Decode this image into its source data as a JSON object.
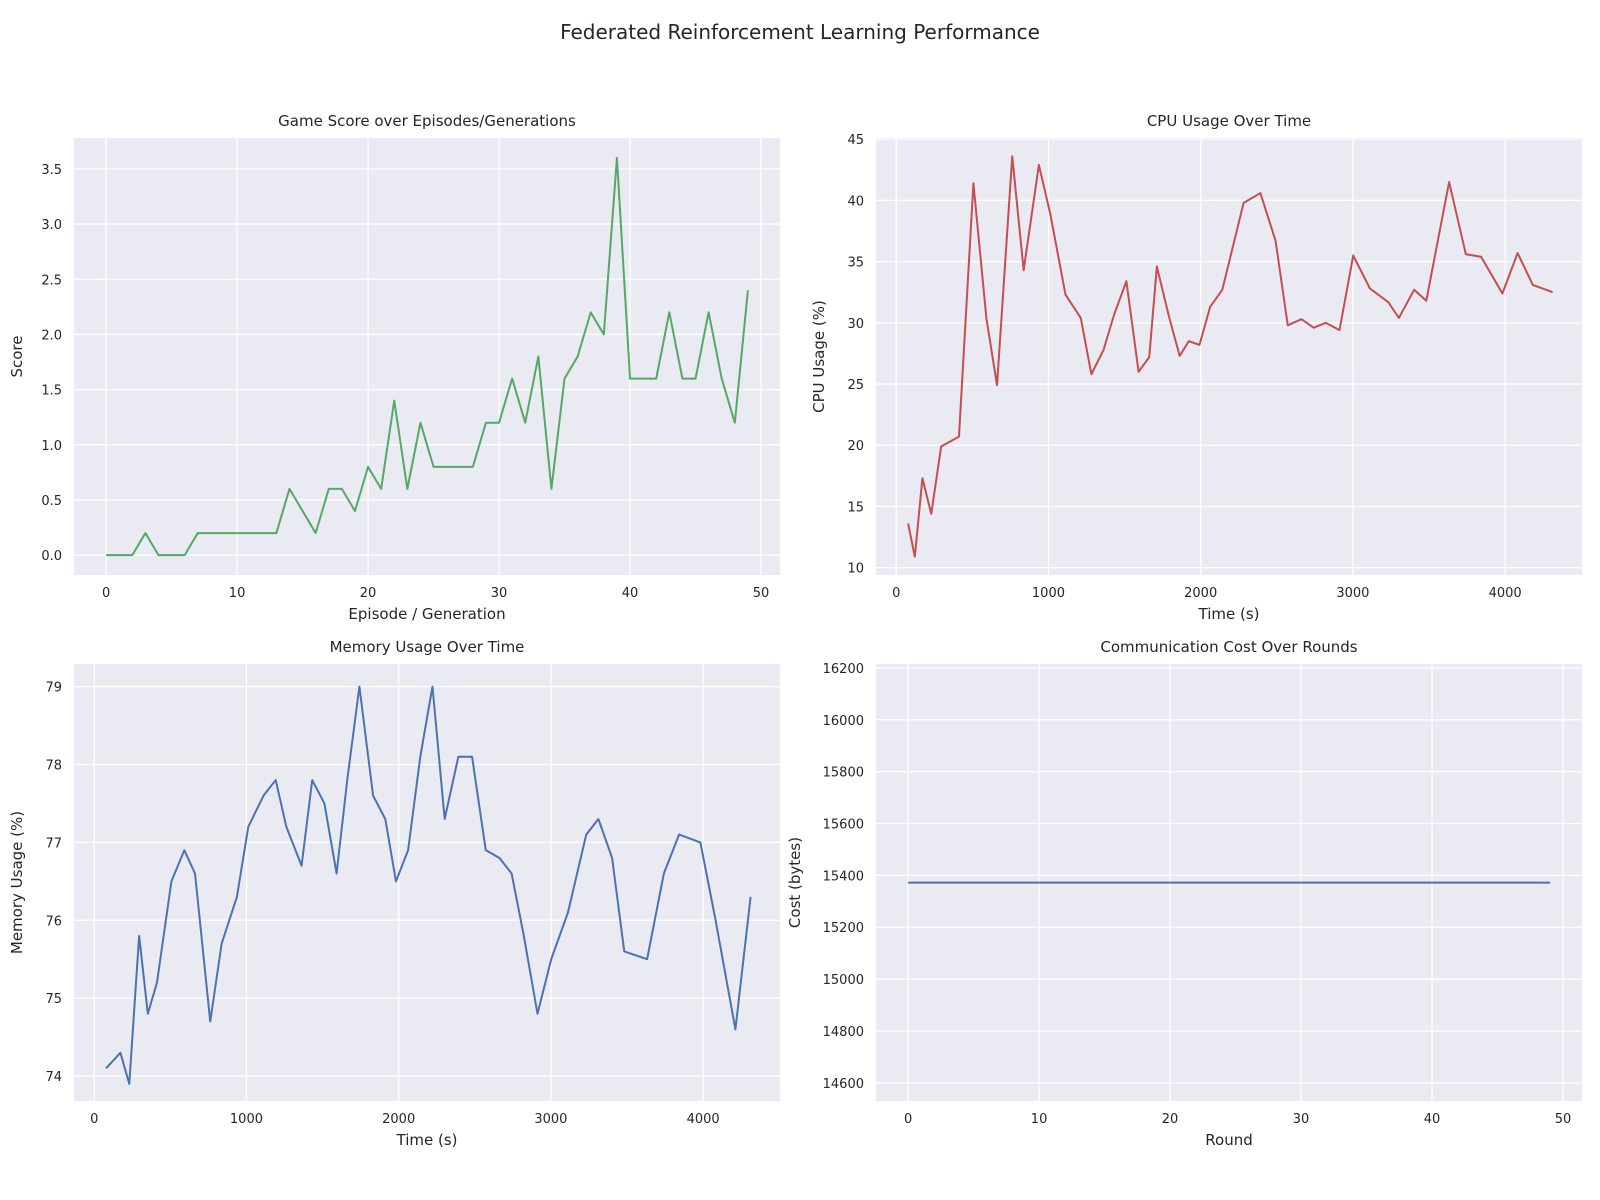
{
  "figure": {
    "suptitle": "Federated Reinforcement Learning Performance"
  },
  "chart_data": [
    {
      "type": "line",
      "title": "Game Score over Episodes/Generations",
      "xlabel": "Episode / Generation",
      "ylabel": "Score",
      "color": "#55a868",
      "grid": true,
      "xlim": [
        -2.45,
        51.45
      ],
      "ylim": [
        -0.18,
        3.78
      ],
      "xticks": [
        0,
        10,
        20,
        30,
        40,
        50
      ],
      "xtick_labels": [
        "0",
        "10",
        "20",
        "30",
        "40",
        "50"
      ],
      "yticks": [
        0,
        0.5,
        1,
        1.5,
        2,
        2.5,
        3,
        3.5
      ],
      "ytick_labels": [
        "0.0",
        "0.5",
        "1.0",
        "1.5",
        "2.0",
        "2.5",
        "3.0",
        "3.5"
      ],
      "x": [
        0,
        1,
        2,
        3,
        4,
        5,
        6,
        7,
        8,
        9,
        10,
        11,
        12,
        13,
        14,
        15,
        16,
        17,
        18,
        19,
        20,
        21,
        22,
        23,
        24,
        25,
        26,
        27,
        28,
        29,
        30,
        31,
        32,
        33,
        34,
        35,
        36,
        37,
        38,
        39,
        40,
        41,
        42,
        43,
        44,
        45,
        46,
        47,
        48,
        49
      ],
      "y": [
        0,
        0,
        0,
        0.2,
        0,
        0,
        0,
        0.2,
        0.2,
        0.2,
        0.2,
        0.2,
        0.2,
        0.2,
        0.6,
        0.4,
        0.2,
        0.6,
        0.6,
        0.4,
        0.8,
        0.6,
        1.4,
        0.6,
        1.2,
        0.8,
        0.8,
        0.8,
        0.8,
        1.2,
        1.2,
        1.6,
        1.2,
        1.8,
        0.6,
        1.6,
        1.8,
        2.2,
        2.0,
        3.6,
        1.6,
        1.6,
        1.6,
        2.2,
        1.6,
        1.6,
        2.2,
        1.6,
        1.2,
        2.4
      ]
    },
    {
      "type": "line",
      "title": "CPU Usage Over Time",
      "xlabel": "Time (s)",
      "ylabel": "CPU Usage (%)",
      "color": "#c44e52",
      "grid": true,
      "xlim": [
        -133,
        4505
      ],
      "ylim": [
        9.4,
        45.1
      ],
      "xticks": [
        0,
        1000,
        2000,
        3000,
        4000
      ],
      "xtick_labels": [
        "0",
        "1000",
        "2000",
        "3000",
        "4000"
      ],
      "yticks": [
        10,
        15,
        20,
        25,
        30,
        35,
        40,
        45
      ],
      "ytick_labels": [
        "10",
        "15",
        "20",
        "25",
        "30",
        "35",
        "40",
        "45"
      ],
      "x": [
        78,
        122,
        172,
        230,
        295,
        412,
        507,
        592,
        662,
        762,
        837,
        937,
        1012,
        1112,
        1212,
        1282,
        1362,
        1432,
        1512,
        1592,
        1662,
        1712,
        1792,
        1862,
        1922,
        1992,
        2062,
        2142,
        2282,
        2392,
        2492,
        2572,
        2662,
        2742,
        2822,
        2912,
        3002,
        3112,
        3232,
        3302,
        3402,
        3482,
        3632,
        3742,
        3842,
        3982,
        4082,
        4182,
        4312
      ],
      "y": [
        13.6,
        10.9,
        17.3,
        14.4,
        19.9,
        20.7,
        41.4,
        30.4,
        24.9,
        43.6,
        34.3,
        42.9,
        38.9,
        32.3,
        30.4,
        25.8,
        27.8,
        30.7,
        33.4,
        26.0,
        27.2,
        34.6,
        30.5,
        27.3,
        28.5,
        28.2,
        31.3,
        32.7,
        39.8,
        40.6,
        36.7,
        29.8,
        30.3,
        29.6,
        30.0,
        29.4,
        35.5,
        32.8,
        31.7,
        30.4,
        32.7,
        31.8,
        41.5,
        35.6,
        35.4,
        32.4,
        35.7,
        33.1,
        32.5
      ]
    },
    {
      "type": "line",
      "title": "Memory Usage Over Time",
      "xlabel": "Time (s)",
      "ylabel": "Memory Usage (%)",
      "color": "#4c72b0",
      "grid": true,
      "xlim": [
        -133,
        4505
      ],
      "ylim": [
        73.68,
        79.29
      ],
      "xticks": [
        0,
        1000,
        2000,
        3000,
        4000
      ],
      "xtick_labels": [
        "0",
        "1000",
        "2000",
        "3000",
        "4000"
      ],
      "yticks": [
        74,
        75,
        76,
        77,
        78,
        79
      ],
      "ytick_labels": [
        "74",
        "75",
        "76",
        "77",
        "78",
        "79"
      ],
      "x": [
        78,
        172,
        230,
        295,
        352,
        412,
        507,
        592,
        662,
        762,
        837,
        937,
        1012,
        1112,
        1192,
        1262,
        1362,
        1432,
        1512,
        1592,
        1662,
        1742,
        1832,
        1912,
        1982,
        2062,
        2142,
        2222,
        2302,
        2392,
        2482,
        2572,
        2662,
        2742,
        2822,
        2912,
        3002,
        3112,
        3232,
        3312,
        3402,
        3482,
        3632,
        3742,
        3842,
        3982,
        4082,
        4212,
        4312
      ],
      "y": [
        74.1,
        74.3,
        73.9,
        75.8,
        74.8,
        75.2,
        76.5,
        76.9,
        76.6,
        74.7,
        75.7,
        76.3,
        77.2,
        77.6,
        77.8,
        77.2,
        76.7,
        77.8,
        77.5,
        76.6,
        77.8,
        79.0,
        77.6,
        77.3,
        76.5,
        76.9,
        78.1,
        79.0,
        77.3,
        78.1,
        78.1,
        76.9,
        76.8,
        76.6,
        75.8,
        74.8,
        75.5,
        76.1,
        77.1,
        77.3,
        76.8,
        75.6,
        75.5,
        76.6,
        77.1,
        77.0,
        76.0,
        74.6,
        76.3
      ]
    },
    {
      "type": "line",
      "title": "Communication Cost Over Rounds",
      "xlabel": "Round",
      "ylabel": "Cost (bytes)",
      "color": "#4c72b0",
      "grid": true,
      "xlim": [
        -2.45,
        51.45
      ],
      "ylim": [
        14530,
        16215
      ],
      "xticks": [
        0,
        10,
        20,
        30,
        40,
        50
      ],
      "xtick_labels": [
        "0",
        "10",
        "20",
        "30",
        "40",
        "50"
      ],
      "yticks": [
        14600,
        14800,
        15000,
        15200,
        15400,
        15600,
        15800,
        16000,
        16200
      ],
      "ytick_labels": [
        "14600",
        "14800",
        "15000",
        "15200",
        "15400",
        "15600",
        "15800",
        "16000",
        "16200"
      ],
      "x": [
        0,
        49
      ],
      "y": [
        15372,
        15372
      ]
    }
  ]
}
